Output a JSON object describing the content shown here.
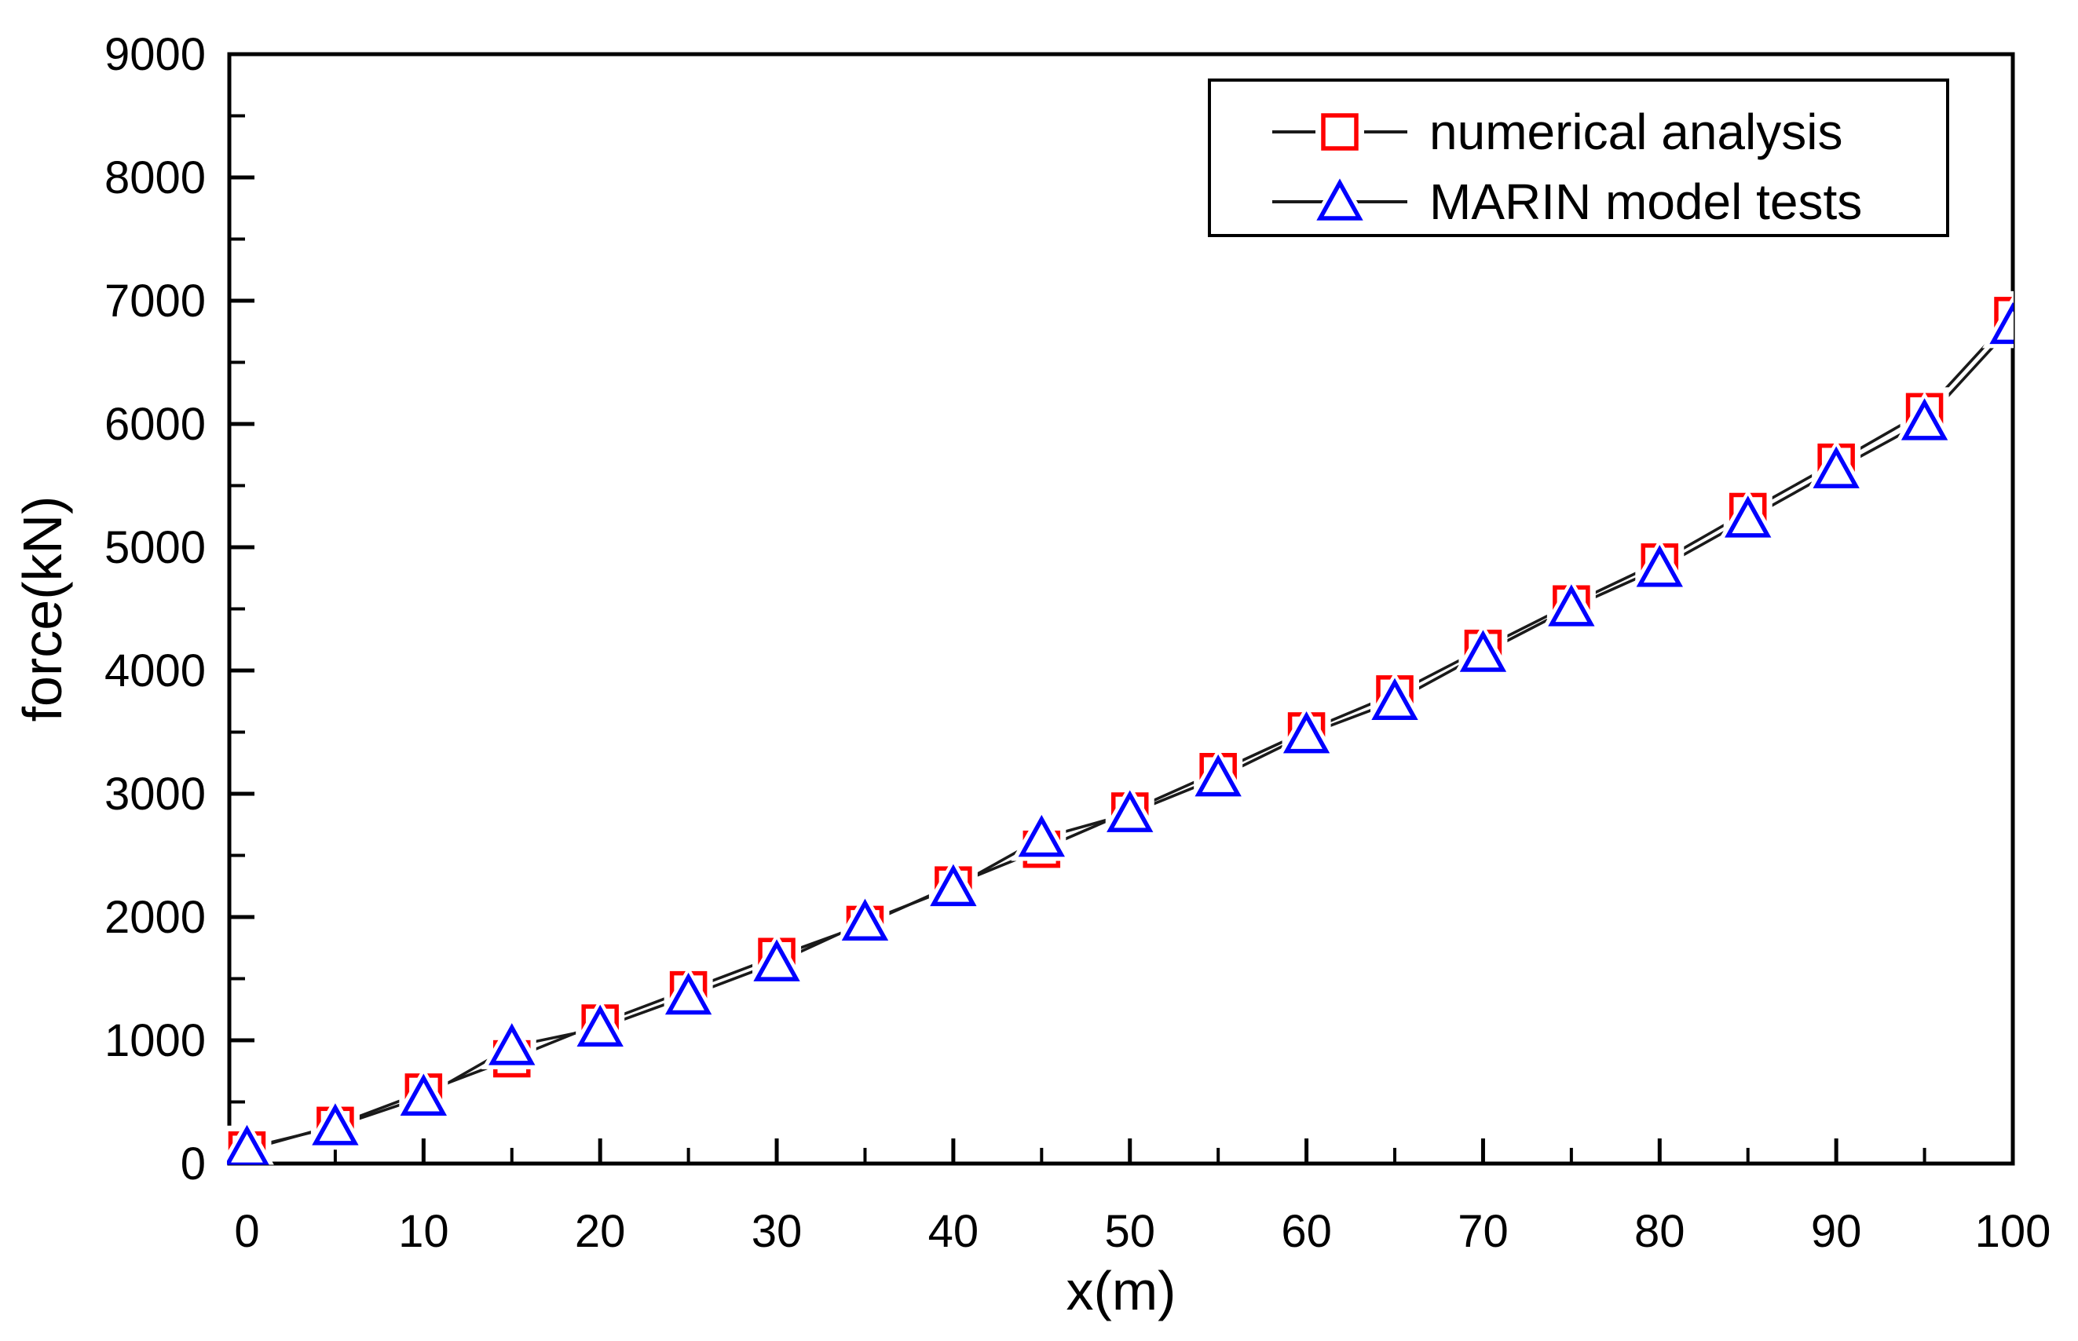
{
  "chart_data": {
    "type": "line",
    "title": "",
    "xlabel": "x(m)",
    "ylabel": "force(kN)",
    "xlim": [
      -1,
      100
    ],
    "ylim": [
      0,
      9000
    ],
    "grid": "off",
    "legend_position": "top-right-inside",
    "x_ticks_major": [
      0,
      10,
      20,
      30,
      40,
      50,
      60,
      70,
      80,
      90,
      100
    ],
    "x_ticks_minor": [
      5,
      15,
      25,
      35,
      45,
      55,
      65,
      75,
      85,
      95
    ],
    "y_ticks_major": [
      0,
      1000,
      2000,
      3000,
      4000,
      5000,
      6000,
      7000,
      8000,
      9000
    ],
    "y_ticks_minor": [
      500,
      1500,
      2500,
      3500,
      4500,
      5500,
      6500,
      7500,
      8500
    ],
    "x": [
      0,
      5,
      10,
      15,
      20,
      25,
      30,
      35,
      40,
      45,
      50,
      55,
      60,
      65,
      70,
      75,
      80,
      85,
      90,
      95,
      100
    ],
    "series": [
      {
        "name": "numerical analysis",
        "marker": "square",
        "marker_color": "#ff0000",
        "line_color": "#1a1a1a",
        "values": [
          110,
          310,
          580,
          850,
          1140,
          1410,
          1680,
          1940,
          2260,
          2550,
          2860,
          3180,
          3510,
          3810,
          4180,
          4540,
          4880,
          5290,
          5690,
          6100,
          6880
        ]
      },
      {
        "name": "MARIN model tests",
        "marker": "triangle",
        "marker_color": "#0000ff",
        "line_color": "#1a1a1a",
        "values": [
          125,
          300,
          540,
          950,
          1100,
          1360,
          1630,
          1960,
          2240,
          2640,
          2840,
          3130,
          3480,
          3750,
          4140,
          4510,
          4830,
          5230,
          5630,
          6020,
          6800
        ]
      }
    ],
    "colors": {
      "frame": "#000000",
      "text": "#000000",
      "background": "#ffffff"
    }
  }
}
